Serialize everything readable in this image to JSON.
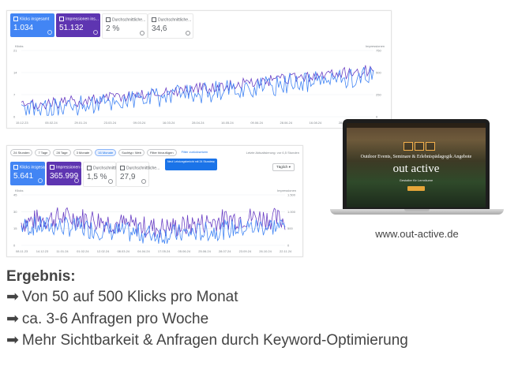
{
  "colors": {
    "blue": "#4285f4",
    "purple": "#5e35b1",
    "blue_line": "#4285f4",
    "purple_line": "#6a3fc4"
  },
  "top_dashboard": {
    "cards": [
      {
        "label": "Klicks insgesamt",
        "value": "1.034",
        "style": "blue"
      },
      {
        "label": "Impressionen ins...",
        "value": "51.132",
        "style": "purple"
      },
      {
        "label": "Durchschnittliche...",
        "value": "2 %",
        "style": "plain"
      },
      {
        "label": "Durchschnittliche...",
        "value": "34,6",
        "style": "plain"
      }
    ],
    "left_axis_label": "Klicks",
    "right_axis_label": "Impressionen",
    "left_ticks": [
      "21",
      "14",
      "7",
      "0"
    ],
    "right_ticks": [
      "750",
      "500",
      "250",
      "0"
    ],
    "x_ticks": [
      "15.12.23",
      "05.02.24",
      "29.01.24",
      "23.03.24",
      "09.03.24",
      "16.03.24",
      "28.04.24",
      "16.05.24",
      "09.06.24",
      "28.06.24",
      "16.08.24",
      "28.04.24",
      "23.06.24"
    ]
  },
  "bottom_dashboard": {
    "toolbar": [
      "24 Stunden",
      "7 Tage",
      "28 Tage",
      "3 Monate",
      "16 Monate",
      "Suchtyp: Web",
      "Filter hinzufügen",
      "Filter zurücksetzen"
    ],
    "update_text": "Letzte Aktualisierung: vor 6,5 Stunden",
    "tooltip_text": "Neu! Leistungsbericht mit 24 Stunden",
    "dropdown": "Täglich",
    "cards": [
      {
        "label": "Klicks insgesamt",
        "value": "5.641",
        "style": "blue"
      },
      {
        "label": "Impressionen ins...",
        "value": "365.999",
        "style": "purple"
      },
      {
        "label": "Durchschnittliche...",
        "value": "1,5 %",
        "style": "plain"
      },
      {
        "label": "Durchschnittliche...",
        "value": "27,9",
        "style": "plain"
      }
    ],
    "left_axis_label": "Klicks",
    "right_axis_label": "Impressionen",
    "left_ticks": [
      "45",
      "30",
      "15",
      "0"
    ],
    "right_ticks": [
      "1.500",
      "1.000",
      "500",
      "0"
    ],
    "x_ticks": [
      "08.11.23",
      "14.12.23",
      "11.01.24",
      "01.02.24",
      "12.02.24",
      "08.03.24",
      "04.04.24",
      "17.05.24",
      "05.06.24",
      "25.06.24",
      "28.07.24",
      "23.09.24",
      "26.10.24",
      "22.11.24"
    ]
  },
  "website_preview": {
    "headline": "Outdoor Events, Seminare & Erlebnispädagogik Angebote",
    "brand": "out active",
    "tagline": "Gestalter für Lernräume",
    "url": "www.out-active.de"
  },
  "results": {
    "title": "Ergebnis:",
    "arrow": "➡",
    "lines": [
      "Von 50 auf 500 Klicks pro Monat",
      "ca. 3-6 Anfragen pro Woche",
      "Mehr Sichtbarkeit & Anfragen durch Keyword-Optimierung"
    ]
  }
}
